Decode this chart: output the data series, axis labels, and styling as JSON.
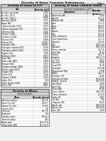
{
  "page_title": "Density of Some Common Substances",
  "date_label": "Date:",
  "bg_color": "#f0f0f0",
  "gases_title": "Density of Gases at STP",
  "gases_col1": "Gas",
  "gases_col2": "Density (g/L)",
  "gases_data": [
    [
      "Air (dry, sea level)",
      "1.293"
    ],
    [
      "Air (dry, 20°C)",
      "1.204"
    ],
    [
      "Air (dry, 100°C)",
      "0.946"
    ],
    [
      "Ammonia (NH3)",
      "0.771"
    ],
    [
      "Argon (Ar)",
      "1.784"
    ],
    [
      "Carbon dioxide (CO2)",
      "1.977"
    ],
    [
      "Carbon monoxide (CO)",
      "1.250"
    ],
    [
      "Chlorine (Cl2)",
      "3.214"
    ],
    [
      "Ethane (C2H6)",
      "1.356"
    ],
    [
      "Ethylene (C2H4)",
      "1.260"
    ],
    [
      "Fluorine (F2)",
      "1.696"
    ],
    [
      "Helium (He)",
      "0.1785"
    ],
    [
      "Hydrogen (H2)",
      "0.0899"
    ],
    [
      "Hydrogen chloride (HCl)",
      "1.639"
    ],
    [
      "Hydrogen sulfide (H2S)",
      "1.539"
    ],
    [
      "Krypton (Kr)",
      "3.749"
    ],
    [
      "Methane (CH4)",
      "0.717"
    ],
    [
      "Neon (Ne)",
      "0.900"
    ],
    [
      "Nitric oxide (NO)",
      "1.340"
    ],
    [
      "Nitrogen (N2)",
      "1.250"
    ],
    [
      "Nitrogen dioxide (NO2)",
      "2.052"
    ],
    [
      "Nitrous oxide (N2O)",
      "1.977"
    ],
    [
      "Oxygen (O2)",
      "1.429"
    ],
    [
      "Ozone (O3)",
      "2.144"
    ],
    [
      "Propane (C3H8)",
      "2.020"
    ],
    [
      "Radon (Rn)",
      "9.73"
    ],
    [
      "Sulfur dioxide (SO2)",
      "2.927"
    ],
    [
      "Xenon (Xe)",
      "5.897"
    ]
  ],
  "solids_title": "Density of Some Common Solids",
  "solids_subtitle": "(at room temperature, 20°C)",
  "solids_col1": "Substance",
  "solids_col2": "Density\n(g/cm³)",
  "solids_data": [
    [
      "Aluminum (Al)",
      "2.702"
    ],
    [
      "Asphalt",
      "1.1-1.5"
    ],
    [
      "Bismuth (Bi)",
      "9.808"
    ],
    [
      "Bone",
      "1.7-2.0"
    ],
    [
      "Brass",
      "8.4-8.7"
    ],
    [
      "Brick",
      "1.4-2.2"
    ],
    [
      "Bronze",
      "8.7-8.9"
    ],
    [
      "Clay",
      "1.8-2.6"
    ],
    [
      "Coal, anthracite",
      "1.4-1.8"
    ],
    [
      "Coal, bituminous",
      "1.2-1.5"
    ],
    [
      "Concrete",
      "2.0-2.5"
    ],
    [
      "Cork",
      "0.12-0.24"
    ],
    [
      "Diamond",
      "3.50-3.53"
    ],
    [
      "Glass, common",
      "2.4-2.8"
    ],
    [
      "Gold (Au)",
      "19.30"
    ],
    [
      "Granite",
      "2.6-2.7"
    ],
    [
      "Graphite",
      "2.09-2.23"
    ],
    [
      "Ice (0°C)",
      "0.917"
    ],
    [
      "Iron (Fe)",
      "7.874"
    ],
    [
      "Lead (Pb)",
      "11.35"
    ],
    [
      "Limestone",
      "2.1-2.86"
    ],
    [
      "Magnesium (Mg)",
      "1.738"
    ],
    [
      "Marble",
      "2.4-2.7"
    ],
    [
      "Platinum (Pt)",
      "21.45"
    ],
    [
      "Polystyrene foam",
      "0.03-0.05"
    ],
    [
      "Rubber, natural",
      "0.91-0.93"
    ],
    [
      "Salt (NaCl)",
      "2.165"
    ],
    [
      "Sand, dry",
      "1.600"
    ],
    [
      "Silver (Ag)",
      "10.49"
    ],
    [
      "Steel, carbon",
      "7.80-7.83"
    ],
    [
      "Stone, common",
      "2.5-3.0"
    ],
    [
      "Sulfur (S)",
      "2.067"
    ],
    [
      "Tin (Sn)",
      "7.31"
    ],
    [
      "Tungsten (W)",
      "19.25"
    ],
    [
      "Wood, oak",
      "0.60-0.90"
    ],
    [
      "Wood, pine",
      "0.40-0.60"
    ],
    [
      "Zinc (Zn)",
      "7.133"
    ]
  ],
  "alloys_title": "Density of Alloys",
  "alloys_subtitle": "(most common)",
  "alloys_col1": "Alloy",
  "alloys_col2": "Density (g/cm³)",
  "alloys_data": [
    [
      "Aluminum alloys",
      "2.6-2.9"
    ],
    [
      "Brass (Cu, Zn)",
      "8.4-8.7"
    ],
    [
      "Bronze (Cu, Sn)",
      "7.7-8.9"
    ],
    [
      "Carbon steel",
      "7.8"
    ],
    [
      "Cast iron",
      "6.8-7.8"
    ],
    [
      "Duralumin",
      "2.79"
    ],
    [
      "Stainless steel",
      "7.75-8.1"
    ],
    [
      "Titanium alloys",
      "4.43"
    ],
    [
      "White gold",
      "14.6-17.8"
    ],
    [
      "Yellow gold (18k)",
      "15.2-15.9"
    ]
  ]
}
